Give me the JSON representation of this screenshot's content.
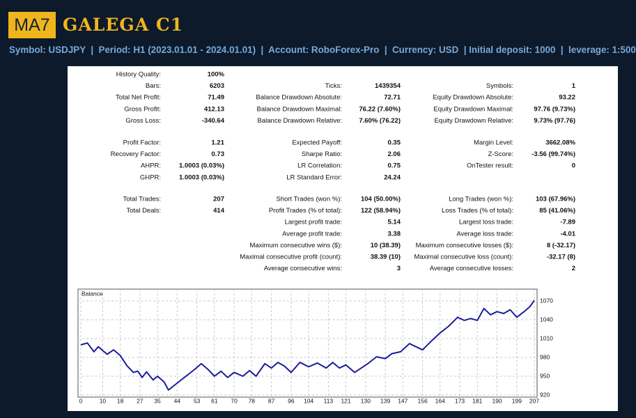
{
  "header": {
    "logo": "MA7",
    "title": "GALEGA C1",
    "info": "Symbol: USDJPY  |  Period: H1 (2023.01.01 - 2024.01.01)  |  Account: RoboForex-Pro  |  Currency: USD  | Initial deposit: 1000  |  leverage: 1:500"
  },
  "stats": {
    "sections": [
      [
        [
          "History Quality:",
          "100%",
          null,
          null,
          null,
          null
        ],
        [
          "Bars:",
          "6203",
          "Ticks:",
          "1439354",
          "Symbols:",
          "1"
        ],
        [
          "Total Net Profit:",
          "71.49",
          "Balance Drawdown Absolute:",
          "72.71",
          "Equity Drawdown Absolute:",
          "93.22"
        ],
        [
          "Gross Profit:",
          "412.13",
          "Balance Drawdown Maximal:",
          "76.22 (7.60%)",
          "Equity Drawdown Maximal:",
          "97.76 (9.73%)"
        ],
        [
          "Gross Loss:",
          "-340.64",
          "Balance Drawdown Relative:",
          "7.60% (76.22)",
          "Equity Drawdown Relative:",
          "9.73% (97.76)"
        ]
      ],
      [
        [
          "Profit Factor:",
          "1.21",
          "Expected Payoff:",
          "0.35",
          "Margin Level:",
          "3662.08%"
        ],
        [
          "Recovery Factor:",
          "0.73",
          "Sharpe Ratio:",
          "2.06",
          "Z-Score:",
          "-3.56 (99.74%)"
        ],
        [
          "AHPR:",
          "1.0003 (0.03%)",
          "LR Correlation:",
          "0.75",
          "OnTester result:",
          "0"
        ],
        [
          "GHPR:",
          "1.0003 (0.03%)",
          "LR Standard Error:",
          "24.24",
          null,
          null
        ]
      ],
      [
        [
          "Total Trades:",
          "207",
          "Short Trades (won %):",
          "104 (50.00%)",
          "Long Trades (won %):",
          "103 (67.96%)"
        ],
        [
          "Total Deals:",
          "414",
          "Profit Trades (% of total):",
          "122 (58.94%)",
          "Loss Trades (% of total):",
          "85 (41.06%)"
        ],
        [
          null,
          null,
          "Largest profit trade:",
          "5.14",
          "Largest loss trade:",
          "-7.89"
        ],
        [
          null,
          null,
          "Average profit trade:",
          "3.38",
          "Average loss trade:",
          "-4.01"
        ],
        [
          null,
          null,
          "Maximum consecutive wins ($):",
          "10 (38.39)",
          "Maximum consecutive losses ($):",
          "8 (-32.17)"
        ],
        [
          null,
          null,
          "Maximal consecutive profit (count):",
          "38.39 (10)",
          "Maximal consecutive loss (count):",
          "-32.17 (8)"
        ],
        [
          null,
          null,
          "Average consecutive wins:",
          "3",
          "Average consecutive losses:",
          "2"
        ]
      ]
    ]
  },
  "chart_data": {
    "type": "line",
    "title": "Balance",
    "x": [
      0,
      3,
      6,
      8,
      12,
      15,
      18,
      21,
      24,
      26,
      28,
      30,
      33,
      35,
      38,
      40,
      44,
      48,
      52,
      55,
      58,
      61,
      64,
      67,
      70,
      74,
      77,
      80,
      84,
      87,
      90,
      93,
      96,
      100,
      104,
      108,
      112,
      115,
      118,
      121,
      125,
      128,
      131,
      135,
      139,
      142,
      146,
      150,
      153,
      156,
      160,
      164,
      168,
      172,
      175,
      178,
      181,
      184,
      187,
      190,
      193,
      196,
      199,
      202,
      205,
      207
    ],
    "series": [
      {
        "name": "Balance",
        "color": "#1c1c9c",
        "values": [
          1000,
          1003,
          989,
          997,
          985,
          992,
          983,
          967,
          956,
          958,
          948,
          957,
          944,
          950,
          941,
          928,
          939,
          950,
          961,
          970,
          961,
          950,
          958,
          948,
          956,
          950,
          959,
          950,
          970,
          963,
          972,
          966,
          956,
          972,
          965,
          971,
          963,
          972,
          963,
          968,
          956,
          963,
          970,
          981,
          978,
          986,
          989,
          1002,
          997,
          992,
          1006,
          1019,
          1030,
          1044,
          1039,
          1042,
          1039,
          1058,
          1048,
          1053,
          1050,
          1056,
          1044,
          1052,
          1061,
          1071
        ]
      }
    ],
    "xlim": [
      0,
      207
    ],
    "ylim": [
      920,
      1070
    ],
    "xticks": [
      0,
      10,
      18,
      27,
      35,
      44,
      53,
      61,
      70,
      78,
      87,
      96,
      104,
      113,
      121,
      130,
      139,
      147,
      156,
      164,
      173,
      181,
      190,
      199,
      207
    ],
    "yticks": [
      920,
      950,
      980,
      1010,
      1040,
      1070
    ],
    "grid": true
  }
}
